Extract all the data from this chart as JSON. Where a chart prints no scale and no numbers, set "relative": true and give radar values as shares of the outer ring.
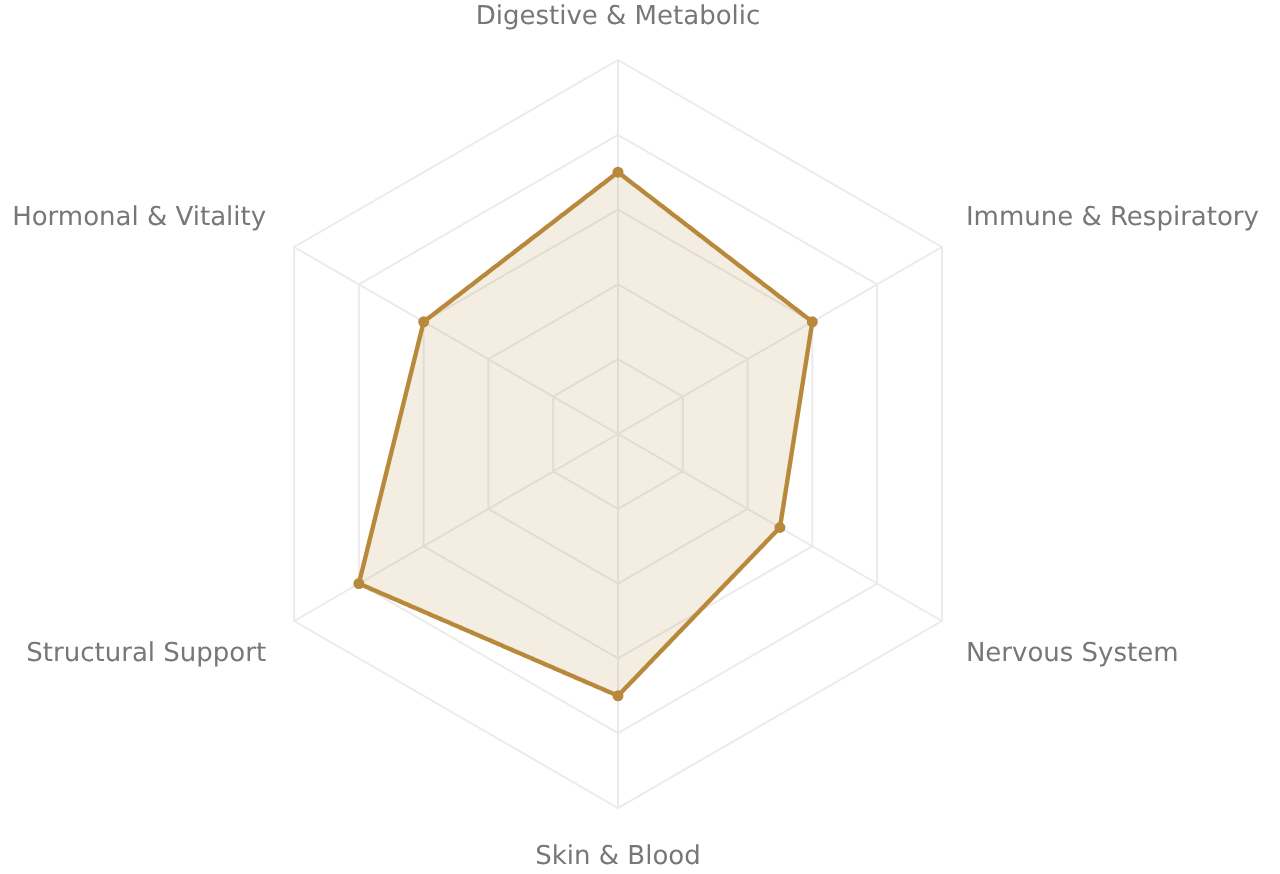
{
  "chart_data": {
    "type": "radar",
    "relative": true,
    "categories": [
      "Digestive & Metabolic",
      "Immune & Respiratory",
      "Nervous System",
      "Skin & Blood",
      "Structural Support",
      "Hormonal & Vitality"
    ],
    "series": [
      {
        "color": "#b8893a",
        "values": [
          0.7,
          0.6,
          0.5,
          0.7,
          0.8,
          0.6
        ]
      }
    ],
    "marker": "circle"
  }
}
